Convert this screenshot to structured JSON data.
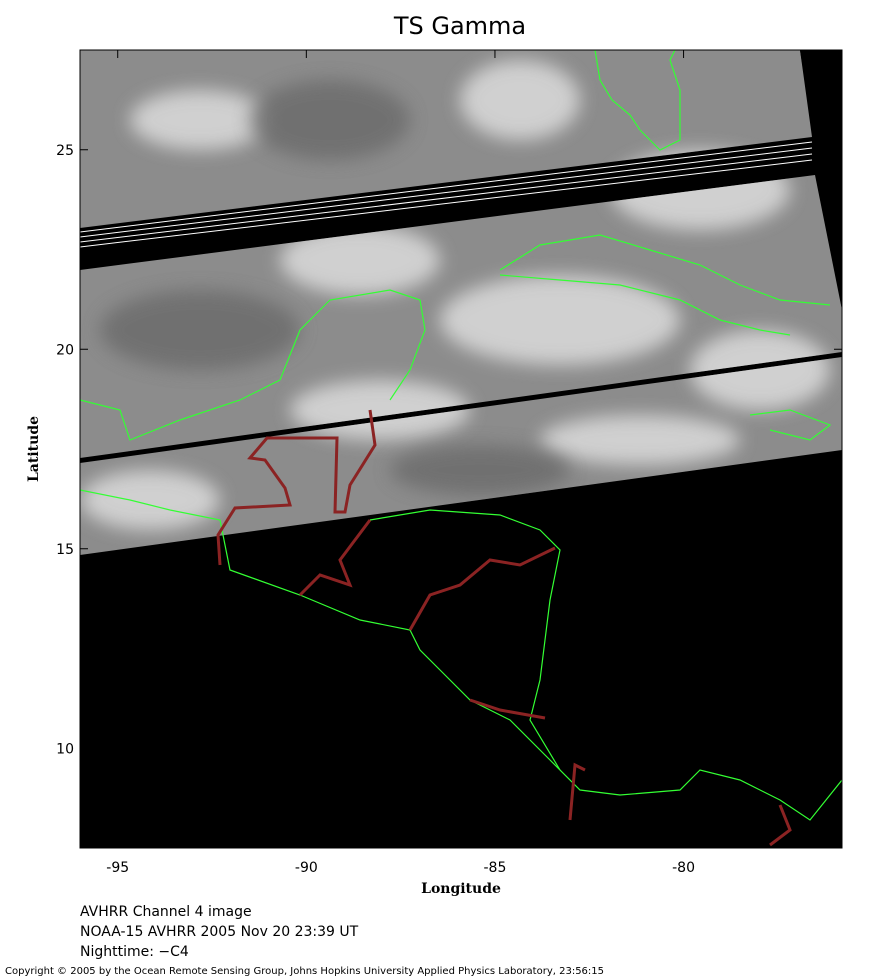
{
  "map": {
    "title": "TS Gamma",
    "xlabel": "Longitude",
    "ylabel": "Latitude",
    "xlim": [
      -96,
      -75.8
    ],
    "ylim": [
      7.5,
      27.5
    ],
    "xticks": [
      -95,
      -90,
      -85,
      -80
    ],
    "yticks": [
      10,
      15,
      20,
      25
    ],
    "captions": [
      "AVHRR Channel 4 image",
      "NOAA-15 AVHRR 2005 Nov 20 23:39 UT",
      "Nighttime: −C4"
    ],
    "copyright": "Copyright © 2005 by the Ocean Remote Sensing Group, Johns Hopkins University Applied Physics Laboratory, 23:56:15"
  }
}
